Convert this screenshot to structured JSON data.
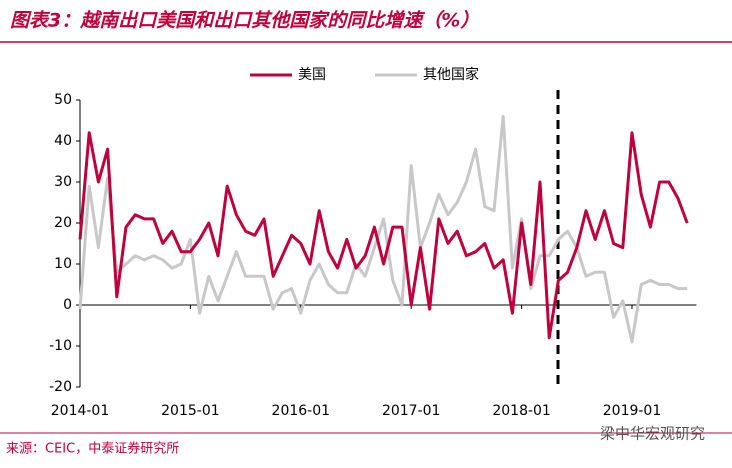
{
  "title": "图表3：越南出口美国和出口其他国家的同比增速（%）",
  "source": "来源：CEIC，中泰证券研究所",
  "watermark": "梁中华宏观研究",
  "chart_data": {
    "type": "line",
    "categories": [
      "2014-01",
      null,
      null,
      null,
      null,
      null,
      null,
      null,
      null,
      null,
      null,
      null,
      "2015-01",
      null,
      null,
      null,
      null,
      null,
      null,
      null,
      null,
      null,
      null,
      null,
      "2016-01",
      null,
      null,
      null,
      null,
      null,
      null,
      null,
      null,
      null,
      null,
      null,
      "2017-01",
      null,
      null,
      null,
      null,
      null,
      null,
      null,
      null,
      null,
      null,
      null,
      "2018-01",
      null,
      null,
      null,
      null,
      null,
      null,
      null,
      null,
      null,
      null,
      null,
      "2019-01",
      null,
      null,
      null,
      null,
      null,
      null
    ],
    "series": [
      {
        "name": "美国",
        "color": "#c0003c",
        "values": [
          16,
          42,
          30,
          38,
          2,
          19,
          22,
          21,
          21,
          15,
          18,
          13,
          13,
          16,
          20,
          12,
          29,
          22,
          18,
          17,
          21,
          7,
          12,
          17,
          15,
          10,
          23,
          13,
          9,
          16,
          9,
          12,
          19,
          10,
          19,
          19,
          0,
          14,
          -1,
          21,
          15,
          18,
          12,
          13,
          15,
          9,
          11,
          -2,
          20,
          5,
          30,
          -8,
          6,
          8,
          14,
          23,
          16,
          23,
          15,
          14,
          42,
          27,
          19,
          30,
          30,
          26,
          20
        ]
      },
      {
        "name": "其他国家",
        "color": "#c8c8c8",
        "values": [
          -1,
          29,
          14,
          31,
          8,
          10,
          12,
          11,
          12,
          11,
          9,
          10,
          16,
          -2,
          7,
          1,
          7,
          13,
          7,
          7,
          7,
          -1,
          3,
          4,
          -2,
          6,
          10,
          5,
          3,
          3,
          10,
          7,
          14,
          21,
          6,
          0,
          34,
          14,
          20,
          27,
          22,
          25,
          30,
          38,
          24,
          23,
          46,
          9,
          21,
          4,
          12,
          12,
          16,
          18,
          14,
          7,
          8,
          8,
          -3,
          1,
          -9,
          5,
          6,
          5,
          5,
          4,
          4
        ]
      }
    ],
    "ylim": [
      -20,
      50
    ],
    "yticks": [
      -20,
      -10,
      0,
      10,
      20,
      30,
      40,
      50
    ]
  }
}
